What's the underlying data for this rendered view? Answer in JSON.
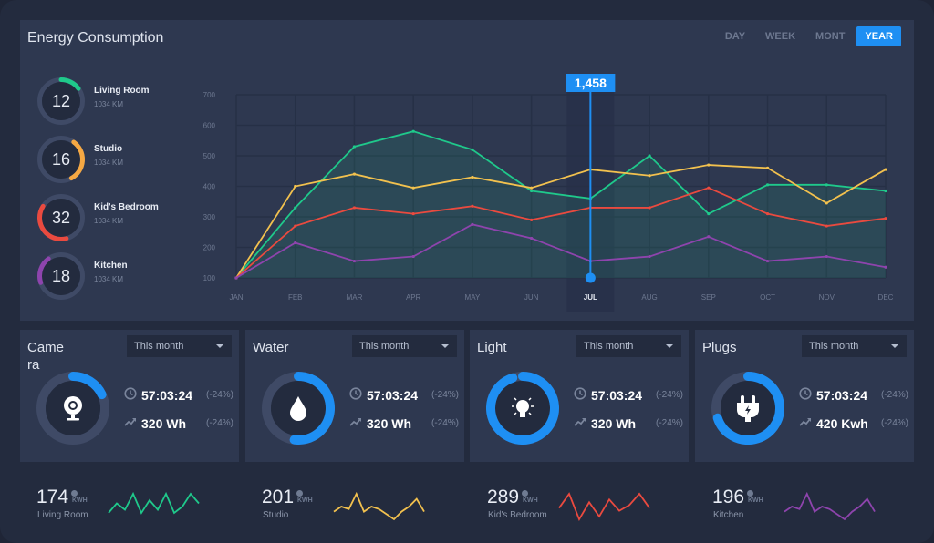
{
  "title": "Energy Consumption",
  "tabs": [
    {
      "label": "DAY"
    },
    {
      "label": "WEEK"
    },
    {
      "label": "MONT"
    },
    {
      "label": "YEAR",
      "active": true
    }
  ],
  "accent": "#1e8ff3",
  "rooms": [
    {
      "value": "12",
      "name": "Living Room",
      "sub": "1034 KM",
      "color": "#1fc98b",
      "arc": [
        0,
        0.15
      ]
    },
    {
      "value": "16",
      "name": "Studio",
      "sub": "1034 KM",
      "color": "#f5a843",
      "arc": [
        0.1,
        0.42
      ]
    },
    {
      "value": "32",
      "name": "Kid's Bedroom",
      "sub": "1034 KM",
      "color": "#ea4a3f",
      "arc": [
        0.46,
        0.84
      ]
    },
    {
      "value": "18",
      "name": "Kitchen",
      "sub": "1034 KM",
      "color": "#8e44ad",
      "arc": [
        0.7,
        0.9
      ]
    }
  ],
  "chart_data": {
    "type": "line",
    "categories": [
      "JAN",
      "FEB",
      "MAR",
      "APR",
      "MAY",
      "JUN",
      "JUL",
      "AUG",
      "SEP",
      "OCT",
      "NOV",
      "DEC"
    ],
    "ylim": [
      100,
      700
    ],
    "yticks": [
      100,
      200,
      300,
      400,
      500,
      600,
      700
    ],
    "grid": true,
    "highlight": {
      "category": "JUL",
      "label": "1,458"
    },
    "series": [
      {
        "color": "#1fc98b",
        "fill": true,
        "values": [
          100,
          330,
          530,
          580,
          520,
          385,
          360,
          500,
          310,
          405,
          405,
          385
        ]
      },
      {
        "color": "#f2c14e",
        "values": [
          100,
          400,
          440,
          395,
          430,
          395,
          455,
          435,
          470,
          460,
          345,
          455
        ]
      },
      {
        "color": "#ea4a3f",
        "values": [
          100,
          270,
          330,
          310,
          335,
          290,
          330,
          330,
          395,
          310,
          270,
          295
        ]
      },
      {
        "color": "#8e44ad",
        "values": [
          100,
          215,
          155,
          170,
          275,
          230,
          155,
          170,
          235,
          155,
          170,
          135
        ]
      }
    ]
  },
  "cards": [
    {
      "title": "Camera",
      "period": "This month",
      "icon": "webcam",
      "time": "57:03:24",
      "time_change": "(-24%)",
      "energy": "320 Wh",
      "energy_change": "(-24%)",
      "arc": [
        0,
        0.18
      ]
    },
    {
      "title": "Water",
      "period": "This month",
      "icon": "water-drop",
      "time": "57:03:24",
      "time_change": "(-24%)",
      "energy": "320 Wh",
      "energy_change": "(-24%)",
      "arc": [
        0,
        0.52
      ]
    },
    {
      "title": "Light",
      "period": "This month",
      "icon": "light-bulb",
      "time": "57:03:24",
      "time_change": "(-24%)",
      "energy": "320 Wh",
      "energy_change": "(-24%)",
      "arc": [
        0,
        0.95
      ]
    },
    {
      "title": "Plugs",
      "period": "This month",
      "icon": "plug",
      "time": "57:03:24",
      "time_change": "(-24%)",
      "energy": "420 Kwh",
      "energy_change": "(-24%)",
      "arc": [
        0,
        0.7
      ]
    }
  ],
  "sparks": [
    {
      "value": "174",
      "unit": "KWH",
      "label": "Living Room",
      "color": "#1fc98b",
      "values": [
        2,
        5,
        3,
        8,
        2,
        6,
        3,
        8,
        2,
        4,
        8,
        5
      ]
    },
    {
      "value": "201",
      "unit": "KWH",
      "label": "Studio",
      "color": "#f2c14e",
      "values": [
        3,
        5,
        4,
        10,
        3,
        5,
        4,
        2,
        0,
        3,
        5,
        8,
        3
      ]
    },
    {
      "value": "289",
      "unit": "KWH",
      "label": "Kid's Bedroom",
      "color": "#ea4a3f",
      "values": [
        4,
        9,
        0,
        6,
        1,
        7,
        3,
        5,
        9,
        4
      ]
    },
    {
      "value": "196",
      "unit": "KWH",
      "label": "Kitchen",
      "color": "#8e44ad",
      "values": [
        3,
        5,
        4,
        10,
        3,
        5,
        4,
        2,
        0,
        3,
        5,
        8,
        3
      ]
    }
  ]
}
